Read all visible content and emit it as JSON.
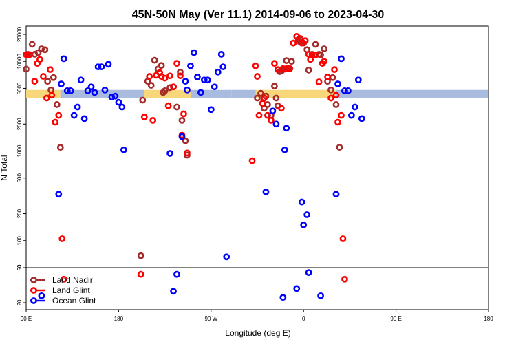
{
  "chart_data": {
    "type": "scatter",
    "title": "45N-50N May (Ver 11.1)   2014-09-06 to 2023-04-30",
    "xlabel": "Longitude (deg E)",
    "ylabel": "N Total",
    "y_scale": "log",
    "x_domain": "longitude from 90 E eastward through 180, 0, 180 (540-degree wrapped span)",
    "x_ticks": [
      "90 E",
      "180",
      "90 W",
      "0",
      "90 E",
      "180"
    ],
    "y_ticks_main": [
      "50",
      "100",
      "200",
      "500",
      "1000",
      "2000",
      "5000",
      "10000",
      "20000"
    ],
    "y_ticks_lower": [
      "20",
      "50"
    ],
    "legend": {
      "placement": "bottom-left",
      "entries": [
        {
          "label": "Land Nadir",
          "color": "#a52a2a"
        },
        {
          "label": "Land Glint",
          "color": "#ff0000"
        },
        {
          "label": "Ocean Glint",
          "color": "#0000ff"
        }
      ]
    },
    "series": [
      {
        "name": "Land Nadir",
        "color": "#a52a2a",
        "points": [
          [
            90,
            8200
          ],
          [
            92,
            12000
          ],
          [
            97,
            15500
          ],
          [
            100,
            12000
          ],
          [
            104,
            12500
          ],
          [
            108,
            13800
          ],
          [
            112,
            13500
          ],
          [
            115,
            6000
          ],
          [
            119,
            4800
          ],
          [
            122,
            6600
          ],
          [
            126,
            3300
          ],
          [
            130,
            1100
          ],
          [
            224,
            68
          ],
          [
            226,
            3700
          ],
          [
            232,
            6000
          ],
          [
            236,
            5400
          ],
          [
            240,
            10300
          ],
          [
            244,
            8200
          ],
          [
            248,
            9000
          ],
          [
            250,
            4500
          ],
          [
            252,
            4700
          ],
          [
            258,
            5100
          ],
          [
            262,
            5200
          ],
          [
            266,
            3100
          ],
          [
            270,
            7600
          ],
          [
            272,
            2200
          ],
          [
            276,
            1300
          ],
          [
            278,
            900
          ],
          [
            360,
            3900
          ],
          [
            364,
            4400
          ],
          [
            368,
            3000
          ],
          [
            370,
            4100
          ],
          [
            372,
            3300
          ],
          [
            376,
            2500
          ],
          [
            380,
            5300
          ],
          [
            382,
            3900
          ],
          [
            384,
            3200
          ],
          [
            386,
            7700
          ],
          [
            388,
            7800
          ],
          [
            392,
            8200
          ],
          [
            394,
            10200
          ],
          [
            396,
            8300
          ],
          [
            400,
            10000
          ],
          [
            402,
            16000
          ],
          [
            408,
            17500
          ],
          [
            410,
            16500
          ],
          [
            414,
            16000
          ],
          [
            418,
            13500
          ],
          [
            420,
            8000
          ],
          [
            424,
            12000
          ],
          [
            428,
            15500
          ],
          [
            432,
            12000
          ],
          [
            434,
            11800
          ],
          [
            438,
            13800
          ],
          [
            442,
            6000
          ],
          [
            446,
            4800
          ],
          [
            448,
            6600
          ],
          [
            452,
            3300
          ],
          [
            456,
            1100
          ]
        ]
      },
      {
        "name": "Land Glint",
        "color": "#ff0000",
        "points": [
          [
            90,
            11900
          ],
          [
            94,
            11900
          ],
          [
            100,
            6000
          ],
          [
            103,
            9500
          ],
          [
            106,
            10500
          ],
          [
            110,
            6800
          ],
          [
            114,
            3900
          ],
          [
            118,
            8100
          ],
          [
            120,
            4200
          ],
          [
            124,
            2100
          ],
          [
            128,
            2500
          ],
          [
            132,
            105
          ],
          [
            134,
            37
          ],
          [
            224,
            42
          ],
          [
            228,
            2400
          ],
          [
            234,
            6800
          ],
          [
            238,
            2200
          ],
          [
            242,
            7000
          ],
          [
            246,
            7500
          ],
          [
            248,
            6800
          ],
          [
            252,
            6500
          ],
          [
            256,
            3200
          ],
          [
            258,
            6900
          ],
          [
            262,
            5200
          ],
          [
            266,
            9500
          ],
          [
            270,
            6900
          ],
          [
            272,
            1500
          ],
          [
            274,
            2600
          ],
          [
            278,
            950
          ],
          [
            354,
            780
          ],
          [
            358,
            8900
          ],
          [
            360,
            6800
          ],
          [
            362,
            2500
          ],
          [
            366,
            3400
          ],
          [
            368,
            3900
          ],
          [
            372,
            2500
          ],
          [
            376,
            2200
          ],
          [
            380,
            9500
          ],
          [
            384,
            8100
          ],
          [
            388,
            3000
          ],
          [
            390,
            8300
          ],
          [
            394,
            8300
          ],
          [
            398,
            8300
          ],
          [
            402,
            16000
          ],
          [
            406,
            19000
          ],
          [
            410,
            18000
          ],
          [
            412,
            16000
          ],
          [
            416,
            17000
          ],
          [
            420,
            12000
          ],
          [
            422,
            10500
          ],
          [
            424,
            11800
          ],
          [
            428,
            11800
          ],
          [
            432,
            5900
          ],
          [
            436,
            9500
          ],
          [
            438,
            10000
          ],
          [
            442,
            6700
          ],
          [
            446,
            3900
          ],
          [
            450,
            8100
          ],
          [
            452,
            4200
          ],
          [
            454,
            2100
          ],
          [
            458,
            2500
          ],
          [
            460,
            105
          ],
          [
            462,
            37
          ]
        ]
      },
      {
        "name": "Ocean Glint",
        "color": "#0000ff",
        "points": [
          [
            108,
            24
          ],
          [
            128,
            330
          ],
          [
            131,
            5600
          ],
          [
            134,
            10700
          ],
          [
            138,
            4700
          ],
          [
            142,
            4700
          ],
          [
            146,
            2500
          ],
          [
            150,
            3100
          ],
          [
            154,
            6200
          ],
          [
            158,
            2300
          ],
          [
            162,
            4700
          ],
          [
            166,
            5200
          ],
          [
            170,
            4500
          ],
          [
            174,
            8700
          ],
          [
            178,
            8700
          ],
          [
            182,
            4800
          ],
          [
            186,
            9300
          ],
          [
            190,
            4000
          ],
          [
            194,
            4100
          ],
          [
            198,
            3500
          ],
          [
            202,
            3100
          ],
          [
            204,
            1030
          ],
          [
            266,
            42
          ],
          [
            258,
            940
          ],
          [
            262,
            27
          ],
          [
            272,
            1450
          ],
          [
            276,
            6000
          ],
          [
            278,
            4800
          ],
          [
            282,
            8900
          ],
          [
            286,
            12500
          ],
          [
            290,
            6700
          ],
          [
            294,
            4500
          ],
          [
            298,
            6200
          ],
          [
            302,
            6200
          ],
          [
            306,
            2900
          ],
          [
            310,
            5200
          ],
          [
            314,
            7600
          ],
          [
            318,
            12000
          ],
          [
            320,
            8700
          ],
          [
            324,
            66
          ],
          [
            370,
            350
          ],
          [
            378,
            2800
          ],
          [
            382,
            2000
          ],
          [
            390,
            23
          ],
          [
            392,
            1030
          ],
          [
            394,
            1800
          ],
          [
            406,
            29
          ],
          [
            412,
            270
          ],
          [
            414,
            150
          ],
          [
            418,
            195
          ],
          [
            420,
            44
          ],
          [
            434,
            24
          ],
          [
            452,
            330
          ],
          [
            454,
            5600
          ],
          [
            458,
            10700
          ],
          [
            462,
            4700
          ],
          [
            466,
            4700
          ],
          [
            470,
            2500
          ],
          [
            474,
            3100
          ],
          [
            478,
            6200
          ],
          [
            482,
            2300
          ]
        ]
      }
    ]
  }
}
